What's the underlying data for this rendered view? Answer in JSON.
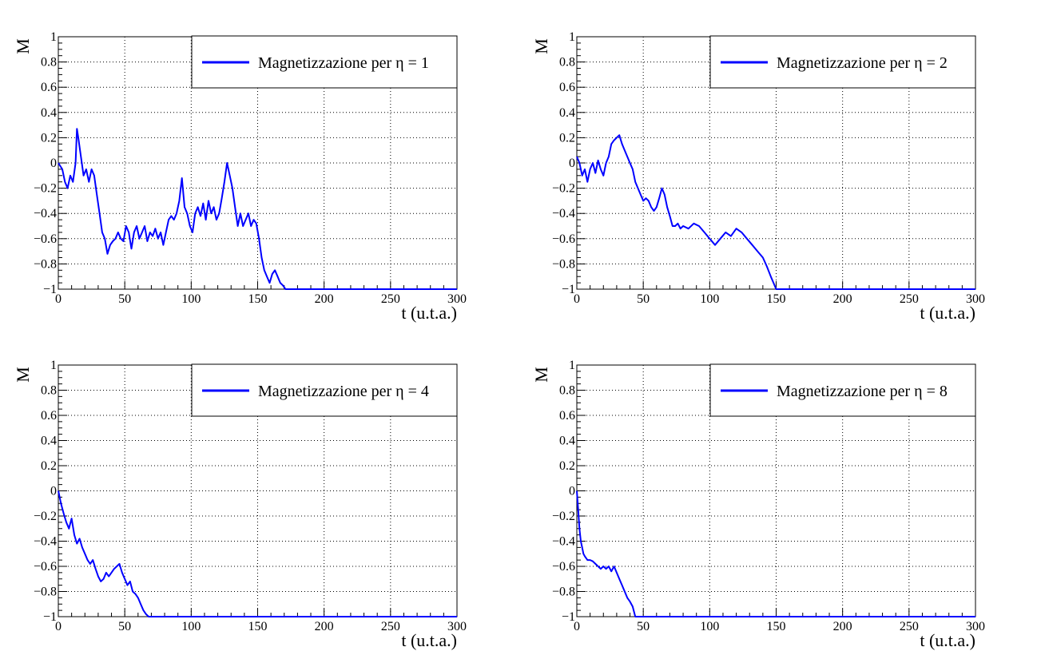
{
  "chart_data": [
    {
      "type": "line",
      "title": "",
      "xlabel": "t (u.t.a.)",
      "ylabel": "M",
      "xlim": [
        0,
        300
      ],
      "ylim": [
        -1,
        1
      ],
      "xticks": [
        0,
        50,
        100,
        150,
        200,
        250,
        300
      ],
      "yticks": [
        -1,
        -0.8,
        -0.6,
        -0.4,
        -0.2,
        0,
        0.2,
        0.4,
        0.6,
        0.8,
        1
      ],
      "grid": true,
      "legend_position": "top-right",
      "series": [
        {
          "name": "Magnetizzazione per η = 1",
          "color": "#0000ff",
          "x": [
            0,
            3,
            5,
            7,
            9,
            11,
            13,
            14,
            15,
            17,
            19,
            21,
            23,
            25,
            27,
            29,
            31,
            33,
            35,
            37,
            39,
            41,
            43,
            45,
            47,
            49,
            51,
            53,
            55,
            57,
            59,
            61,
            63,
            65,
            67,
            69,
            71,
            73,
            75,
            77,
            79,
            81,
            83,
            85,
            87,
            89,
            91,
            93,
            95,
            97,
            99,
            101,
            103,
            105,
            107,
            109,
            111,
            113,
            115,
            117,
            119,
            121,
            123,
            125,
            127,
            129,
            131,
            133,
            135,
            137,
            139,
            141,
            143,
            145,
            147,
            149,
            151,
            153,
            155,
            157,
            159,
            161,
            163,
            165,
            167,
            169,
            171,
            173,
            175,
            300
          ],
          "y": [
            0,
            -0.05,
            -0.15,
            -0.2,
            -0.1,
            -0.15,
            0,
            0.27,
            0.2,
            0.05,
            -0.1,
            -0.05,
            -0.15,
            -0.05,
            -0.1,
            -0.25,
            -0.4,
            -0.55,
            -0.6,
            -0.72,
            -0.65,
            -0.62,
            -0.6,
            -0.55,
            -0.6,
            -0.62,
            -0.5,
            -0.55,
            -0.68,
            -0.55,
            -0.5,
            -0.6,
            -0.55,
            -0.5,
            -0.62,
            -0.55,
            -0.58,
            -0.52,
            -0.6,
            -0.55,
            -0.65,
            -0.55,
            -0.45,
            -0.42,
            -0.45,
            -0.4,
            -0.3,
            -0.12,
            -0.35,
            -0.4,
            -0.5,
            -0.55,
            -0.4,
            -0.35,
            -0.42,
            -0.32,
            -0.45,
            -0.3,
            -0.4,
            -0.35,
            -0.45,
            -0.4,
            -0.28,
            -0.15,
            0,
            -0.1,
            -0.2,
            -0.35,
            -0.5,
            -0.4,
            -0.5,
            -0.45,
            -0.4,
            -0.5,
            -0.45,
            -0.48,
            -0.6,
            -0.75,
            -0.85,
            -0.9,
            -0.95,
            -0.88,
            -0.85,
            -0.9,
            -0.95,
            -0.97,
            -1,
            -1,
            -1,
            -1
          ]
        }
      ]
    },
    {
      "type": "line",
      "title": "",
      "xlabel": "t (u.t.a.)",
      "ylabel": "M",
      "xlim": [
        0,
        300
      ],
      "ylim": [
        -1,
        1
      ],
      "xticks": [
        0,
        50,
        100,
        150,
        200,
        250,
        300
      ],
      "yticks": [
        -1,
        -0.8,
        -0.6,
        -0.4,
        -0.2,
        0,
        0.2,
        0.4,
        0.6,
        0.8,
        1
      ],
      "grid": true,
      "legend_position": "top-right",
      "series": [
        {
          "name": "Magnetizzazione per η = 2",
          "color": "#0000ff",
          "x": [
            0,
            2,
            4,
            6,
            8,
            10,
            12,
            14,
            16,
            18,
            20,
            22,
            24,
            26,
            28,
            30,
            32,
            34,
            36,
            38,
            40,
            42,
            44,
            46,
            48,
            50,
            52,
            54,
            56,
            58,
            60,
            62,
            64,
            66,
            68,
            70,
            72,
            74,
            76,
            78,
            80,
            84,
            88,
            92,
            96,
            100,
            104,
            108,
            112,
            116,
            120,
            124,
            128,
            132,
            136,
            140,
            143,
            146,
            148,
            150,
            300
          ],
          "y": [
            0.05,
            0,
            -0.1,
            -0.05,
            -0.15,
            -0.05,
            0,
            -0.08,
            0.02,
            -0.05,
            -0.1,
            0,
            0.05,
            0.15,
            0.18,
            0.2,
            0.22,
            0.15,
            0.1,
            0.05,
            0,
            -0.05,
            -0.15,
            -0.2,
            -0.25,
            -0.3,
            -0.28,
            -0.3,
            -0.35,
            -0.38,
            -0.35,
            -0.28,
            -0.2,
            -0.25,
            -0.35,
            -0.42,
            -0.5,
            -0.5,
            -0.48,
            -0.52,
            -0.5,
            -0.52,
            -0.48,
            -0.5,
            -0.55,
            -0.6,
            -0.65,
            -0.6,
            -0.55,
            -0.58,
            -0.52,
            -0.55,
            -0.6,
            -0.65,
            -0.7,
            -0.75,
            -0.82,
            -0.9,
            -0.95,
            -1,
            -1
          ]
        }
      ]
    },
    {
      "type": "line",
      "title": "",
      "xlabel": "t (u.t.a.)",
      "ylabel": "M",
      "xlim": [
        0,
        300
      ],
      "ylim": [
        -1,
        1
      ],
      "xticks": [
        0,
        50,
        100,
        150,
        200,
        250,
        300
      ],
      "yticks": [
        -1,
        -0.8,
        -0.6,
        -0.4,
        -0.2,
        0,
        0.2,
        0.4,
        0.6,
        0.8,
        1
      ],
      "grid": true,
      "legend_position": "top-right",
      "series": [
        {
          "name": "Magnetizzazione per η = 4",
          "color": "#0000ff",
          "x": [
            0,
            2,
            4,
            6,
            8,
            10,
            12,
            14,
            16,
            18,
            20,
            22,
            24,
            26,
            28,
            30,
            32,
            34,
            36,
            38,
            40,
            42,
            44,
            46,
            48,
            50,
            52,
            54,
            56,
            58,
            60,
            62,
            64,
            66,
            68,
            300
          ],
          "y": [
            0,
            -0.1,
            -0.18,
            -0.25,
            -0.3,
            -0.22,
            -0.35,
            -0.42,
            -0.38,
            -0.45,
            -0.5,
            -0.55,
            -0.58,
            -0.55,
            -0.62,
            -0.68,
            -0.72,
            -0.7,
            -0.65,
            -0.68,
            -0.65,
            -0.62,
            -0.6,
            -0.58,
            -0.65,
            -0.7,
            -0.75,
            -0.72,
            -0.8,
            -0.82,
            -0.85,
            -0.9,
            -0.95,
            -0.98,
            -1,
            -1
          ]
        }
      ]
    },
    {
      "type": "line",
      "title": "",
      "xlabel": "t (u.t.a.)",
      "ylabel": "M",
      "xlim": [
        0,
        300
      ],
      "ylim": [
        -1,
        1
      ],
      "xticks": [
        0,
        50,
        100,
        150,
        200,
        250,
        300
      ],
      "yticks": [
        -1,
        -0.8,
        -0.6,
        -0.4,
        -0.2,
        0,
        0.2,
        0.4,
        0.6,
        0.8,
        1
      ],
      "grid": true,
      "legend_position": "top-right",
      "series": [
        {
          "name": "Magnetizzazione per η = 8",
          "color": "#0000ff",
          "x": [
            0,
            1,
            2,
            3,
            4,
            5,
            6,
            8,
            10,
            12,
            14,
            16,
            18,
            20,
            22,
            24,
            26,
            28,
            30,
            32,
            34,
            36,
            38,
            40,
            42,
            44,
            300
          ],
          "y": [
            0,
            -0.15,
            -0.3,
            -0.4,
            -0.45,
            -0.5,
            -0.52,
            -0.55,
            -0.55,
            -0.56,
            -0.58,
            -0.6,
            -0.62,
            -0.6,
            -0.62,
            -0.6,
            -0.64,
            -0.6,
            -0.65,
            -0.7,
            -0.75,
            -0.8,
            -0.85,
            -0.88,
            -0.92,
            -1,
            -1
          ]
        }
      ]
    }
  ]
}
